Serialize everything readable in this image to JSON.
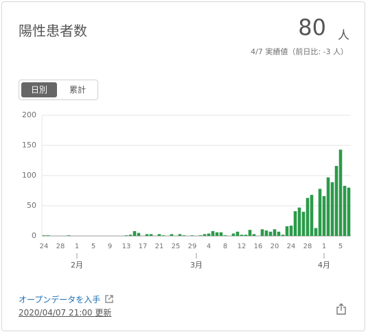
{
  "header": {
    "title": "陽性患者数",
    "value": 80,
    "unit": "人",
    "subtitle": "4/7 実績値（前日比: -3 人）"
  },
  "tabs": [
    "日別",
    "累計"
  ],
  "chart_data": {
    "type": "bar",
    "color": "#2b9a4a",
    "grid": true,
    "ylim": [
      0,
      200
    ],
    "yticks": [
      0,
      50,
      100,
      150,
      200
    ],
    "categories": [
      "24",
      null,
      null,
      null,
      "28",
      null,
      null,
      null,
      "1",
      null,
      null,
      null,
      "5",
      null,
      null,
      null,
      "9",
      null,
      null,
      null,
      "13",
      null,
      null,
      null,
      "17",
      null,
      null,
      null,
      "21",
      null,
      null,
      null,
      "25",
      null,
      null,
      null,
      "29",
      null,
      null,
      null,
      "4",
      null,
      null,
      null,
      "8",
      null,
      null,
      null,
      "12",
      null,
      null,
      null,
      "16",
      null,
      null,
      null,
      "20",
      null,
      null,
      null,
      "24",
      null,
      null,
      null,
      "28",
      null,
      null,
      null,
      "1",
      null,
      null,
      null,
      "5",
      null,
      null
    ],
    "month_categories": [
      null,
      null,
      null,
      null,
      null,
      null,
      null,
      null,
      "2月",
      null,
      null,
      null,
      null,
      null,
      null,
      null,
      null,
      null,
      null,
      null,
      null,
      null,
      null,
      null,
      null,
      null,
      null,
      null,
      null,
      null,
      null,
      null,
      null,
      null,
      null,
      null,
      null,
      "3月",
      null,
      null,
      null,
      null,
      null,
      null,
      null,
      null,
      null,
      null,
      null,
      null,
      null,
      null,
      null,
      null,
      null,
      null,
      null,
      null,
      null,
      null,
      null,
      null,
      null,
      null,
      null,
      null,
      null,
      null,
      "4月",
      null,
      null,
      null,
      null,
      null,
      null
    ],
    "values": [
      1,
      1,
      0,
      0,
      0,
      0,
      1,
      0,
      0,
      0,
      0,
      0,
      0,
      0,
      0,
      0,
      0,
      0,
      0,
      0,
      1,
      2,
      8,
      5,
      0,
      3,
      3,
      0,
      3,
      1,
      0,
      3,
      0,
      3,
      1,
      0,
      1,
      0,
      1,
      3,
      4,
      8,
      6,
      6,
      1,
      0,
      4,
      7,
      2,
      2,
      10,
      3,
      0,
      11,
      9,
      7,
      11,
      7,
      2,
      16,
      17,
      41,
      47,
      40,
      63,
      68,
      13,
      78,
      66,
      97,
      89,
      116,
      143,
      83,
      80
    ]
  },
  "footer": {
    "link": "オープンデータを入手",
    "updated": "2020/04/07 21:00 更新"
  }
}
